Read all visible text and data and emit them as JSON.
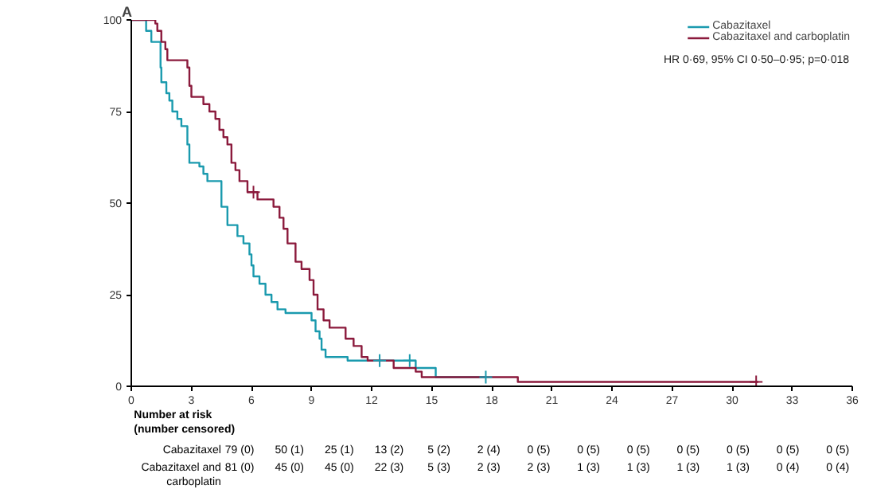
{
  "chart_data": {
    "type": "step",
    "title": "A",
    "xlim": [
      0,
      36
    ],
    "xticks": [
      0,
      3,
      6,
      9,
      12,
      15,
      18,
      21,
      24,
      27,
      30,
      33,
      36
    ],
    "ylim": [
      0,
      100
    ],
    "yticks": [
      0,
      25,
      50,
      75,
      100
    ],
    "grid": false,
    "legend": "top right",
    "marker": "none",
    "line_style": "solid",
    "series": [
      {
        "name": "Cabazitaxel",
        "color": "#1a9aae",
        "x": [
          0,
          0.74,
          1.0,
          1.46,
          1.5,
          1.75,
          1.9,
          2.05,
          2.3,
          2.5,
          2.8,
          2.9,
          3.4,
          3.6,
          3.8,
          4.5,
          4.8,
          5.3,
          5.6,
          5.9,
          6.0,
          6.1,
          6.4,
          6.7,
          7.0,
          7.3,
          7.7,
          9.0,
          9.2,
          9.4,
          9.5,
          9.7,
          10.8,
          11.7,
          14.2,
          15.2,
          17.7
        ],
        "values": [
          100,
          97,
          94,
          87,
          83,
          80,
          78,
          75,
          73,
          71,
          66,
          61,
          60,
          58,
          56,
          49,
          44,
          41,
          39,
          36,
          33,
          30,
          28,
          25,
          23,
          21,
          20,
          18,
          15,
          13,
          10,
          8,
          7,
          7,
          5,
          2.5,
          2.5
        ]
      },
      {
        "name": "Cabazitaxel and carboplatin",
        "color": "#8b1a3c",
        "x": [
          0,
          1.2,
          1.3,
          1.5,
          1.7,
          1.8,
          2.8,
          2.9,
          3.0,
          3.6,
          3.9,
          4.2,
          4.4,
          4.6,
          4.8,
          5.0,
          5.2,
          5.4,
          5.8,
          6.3,
          7.1,
          7.4,
          7.6,
          7.8,
          8.2,
          8.5,
          8.9,
          9.1,
          9.3,
          9.6,
          9.9,
          10.7,
          11.1,
          11.5,
          11.8,
          13.1,
          14.2,
          14.5,
          19.3,
          31.3
        ],
        "values": [
          100,
          99,
          97,
          94,
          92,
          89,
          87,
          82,
          79,
          77,
          75,
          73,
          70,
          68,
          66,
          61,
          59,
          56,
          53,
          51,
          49,
          46,
          43,
          39,
          34,
          32,
          29,
          25,
          21,
          18,
          16,
          13,
          11,
          8,
          7,
          5,
          4,
          2.5,
          1.2,
          1.2
        ]
      },
      {
        "type": "scatter",
        "marker": "cross",
        "color": "#1a9aae",
        "x": [
          12.4,
          13.9,
          17.7
        ],
        "values": [
          7,
          7,
          2.5
        ]
      },
      {
        "type": "scatter",
        "marker": "cross",
        "color": "#8b1a3c",
        "x": [
          6.1,
          31.2
        ],
        "values": [
          53,
          1.2
        ]
      }
    ],
    "annotations": [
      "HR 0·69, 95% CI 0·50–0·95; p=0·018",
      "Number at risk (number censored)",
      "Cabazitaxel",
      "Cabazitaxel and carboplatin",
      "79 (0)",
      "50 (1)",
      "25 (1)",
      "13 (2)",
      "5 (2)",
      "2 (4)",
      "0 (5)",
      "0 (5)",
      "0 (5)",
      "0 (5)",
      "0 (5)",
      "0 (5)",
      "0 (5)",
      "81 (0)",
      "45 (0)",
      "45 (0)",
      "22 (3)",
      "5 (3)",
      "2 (3)",
      "2 (3)",
      "1 (3)",
      "1 (3)",
      "1 (3)",
      "1 (3)",
      "0 (4)",
      "0 (4)"
    ]
  }
}
